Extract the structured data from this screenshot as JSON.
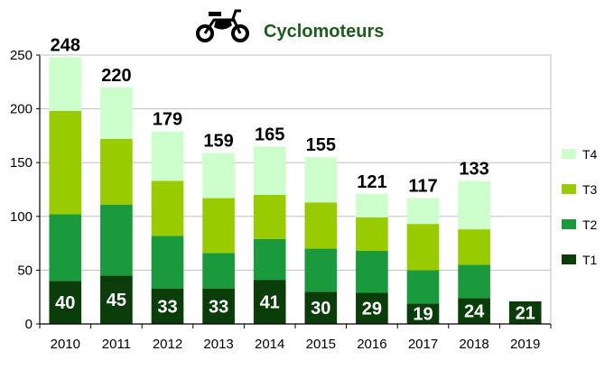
{
  "chart_data": {
    "type": "bar",
    "stacked": true,
    "title": "Cyclomoteurs",
    "title_icon": "moped-icon",
    "categories": [
      "2010",
      "2011",
      "2012",
      "2013",
      "2014",
      "2015",
      "2016",
      "2017",
      "2018",
      "2019"
    ],
    "series": [
      {
        "name": "T1",
        "color": "#0a3d0a",
        "values": [
          40,
          45,
          33,
          33,
          41,
          30,
          29,
          19,
          24,
          21
        ]
      },
      {
        "name": "T2",
        "color": "#1a9a3c",
        "values": [
          62,
          66,
          49,
          33,
          38,
          40,
          39,
          31,
          31,
          0
        ]
      },
      {
        "name": "T3",
        "color": "#99cc00",
        "values": [
          96,
          61,
          51,
          51,
          41,
          43,
          31,
          43,
          33,
          0
        ]
      },
      {
        "name": "T4",
        "color": "#ccffcc",
        "values": [
          50,
          48,
          46,
          42,
          45,
          42,
          22,
          24,
          45,
          0
        ]
      }
    ],
    "totals": [
      "248",
      "220",
      "179",
      "159",
      "165",
      "155",
      "121",
      "117",
      "133",
      ""
    ],
    "ylim": [
      0,
      250
    ],
    "yticks": [
      "0",
      "50",
      "100",
      "150",
      "200",
      "250"
    ],
    "grid": true,
    "legend_position": "right",
    "legend_order": [
      "T4",
      "T3",
      "T2",
      "T1"
    ]
  }
}
